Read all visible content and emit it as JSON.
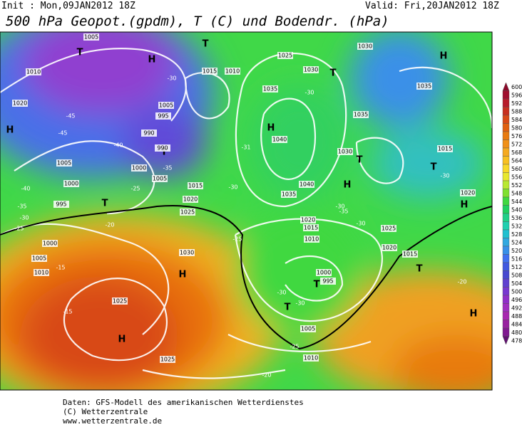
{
  "header": {
    "init": "Init : Mon,09JAN2012 18Z",
    "valid": "Valid: Fri,20JAN2012 18Z",
    "title": "500 hPa Geopot.(gpdm), T (C) und Bodendr. (hPa)"
  },
  "map": {
    "centers": [
      "H",
      "H",
      "H",
      "H",
      "H",
      "H",
      "H",
      "H",
      "H",
      "T",
      "T",
      "T",
      "T",
      "T",
      "T",
      "T",
      "T",
      "T",
      "T"
    ],
    "isobars": [
      "1005",
      "1010",
      "1020",
      "1005",
      "1000",
      "995",
      "1000",
      "1005",
      "1010",
      "1025",
      "1030",
      "1025",
      "1015",
      "1010",
      "1025",
      "1030",
      "1035",
      "1040",
      "1040",
      "1035",
      "1030",
      "1035",
      "1035",
      "1015",
      "1020",
      "1025",
      "1020",
      "1015",
      "1020",
      "1015",
      "1010",
      "1000",
      "995",
      "1005",
      "1010",
      "1030",
      "990",
      "990",
      "995",
      "1000",
      "1005",
      "1015",
      "1020",
      "1025",
      "1005"
    ],
    "temps": [
      "-45",
      "-45",
      "-40",
      "-40",
      "-35",
      "-30",
      "-25",
      "-20",
      "-15",
      "-15",
      "-35",
      "-30",
      "-25",
      "-30",
      "-31",
      "-30",
      "-30",
      "-35",
      "-30",
      "-25",
      "-30",
      "-30",
      "-25",
      "-20",
      "-20",
      "-30"
    ]
  },
  "colorbar": {
    "levels": [
      600,
      596,
      592,
      588,
      584,
      580,
      576,
      572,
      568,
      564,
      560,
      556,
      552,
      548,
      544,
      540,
      536,
      532,
      528,
      524,
      520,
      516,
      512,
      508,
      504,
      500,
      496,
      492,
      488,
      484,
      480,
      478
    ],
    "colors": [
      "#8b0a2a",
      "#a01030",
      "#b81c2c",
      "#c83020",
      "#d84a18",
      "#e06010",
      "#e87a10",
      "#f09018",
      "#f5aa20",
      "#f8c020",
      "#f8d828",
      "#e8e830",
      "#b8e830",
      "#80e030",
      "#40d840",
      "#20d060",
      "#20d088",
      "#20d0b0",
      "#20c0d0",
      "#30a8e0",
      "#3890e8",
      "#4070f0",
      "#4058e0",
      "#4848d0",
      "#6040d0",
      "#7838d0",
      "#9030c8",
      "#a030c0",
      "#a828b0",
      "#9820a0",
      "#801890",
      "#601070"
    ]
  },
  "footer": {
    "lines": [
      "Daten: GFS-Modell des amerikanischen Wetterdienstes",
      "(C) Wetterzentrale",
      "www.wetterzentrale.de"
    ]
  }
}
